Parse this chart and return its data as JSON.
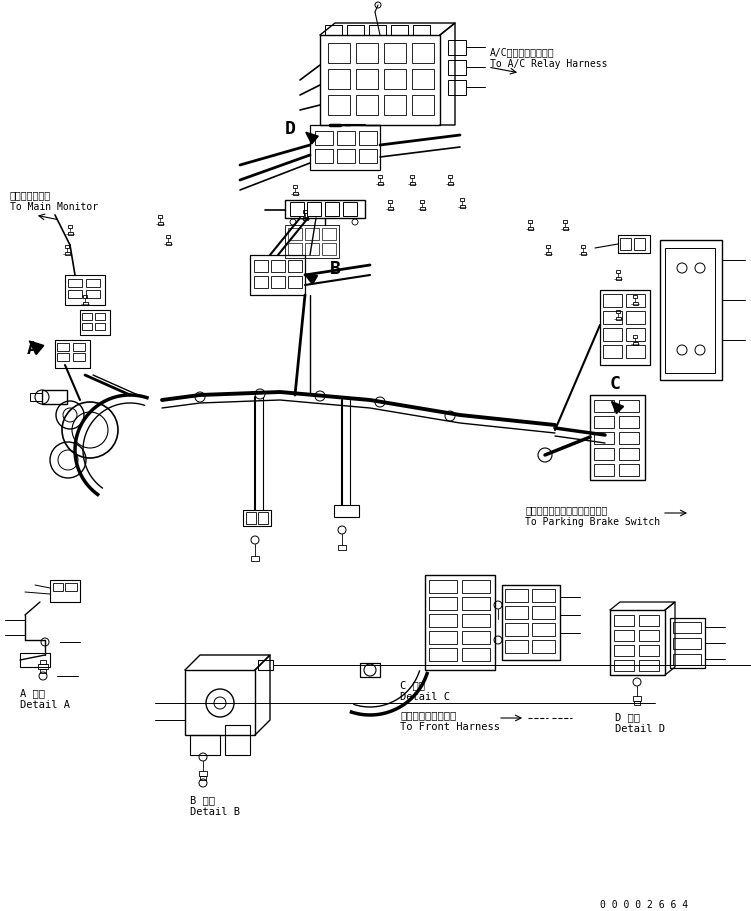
{
  "background_color": "#ffffff",
  "line_color": "#000000",
  "part_number": "0 0 0 0 2 6 6 4",
  "fig_width": 7.51,
  "fig_height": 9.11,
  "dpi": 100,
  "labels": {
    "main_monitor_jp": "メインモニタへ",
    "main_monitor_en": "To Main Monitor",
    "ac_relay_jp": "A/Cリレーハーネスへ",
    "ac_relay_en": "To A/C Relay Harness",
    "parking_brake_jp": "パーキングブレーキスイッチへ",
    "parking_brake_en": "To Parking Brake Switch",
    "front_harness_jp": "フロントハーネスへ",
    "front_harness_en": "To Front Harness",
    "detail_a_jp": "A 詳細",
    "detail_a_en": "Detail A",
    "detail_b_jp": "B 詳細",
    "detail_b_en": "Detail B",
    "detail_c_jp": "C 詳細",
    "detail_c_en": "Detail C",
    "detail_d_jp": "D 詳細",
    "detail_d_en": "Detail D",
    "label_a": "A",
    "label_b": "B",
    "label_c": "C",
    "label_d": "D"
  }
}
